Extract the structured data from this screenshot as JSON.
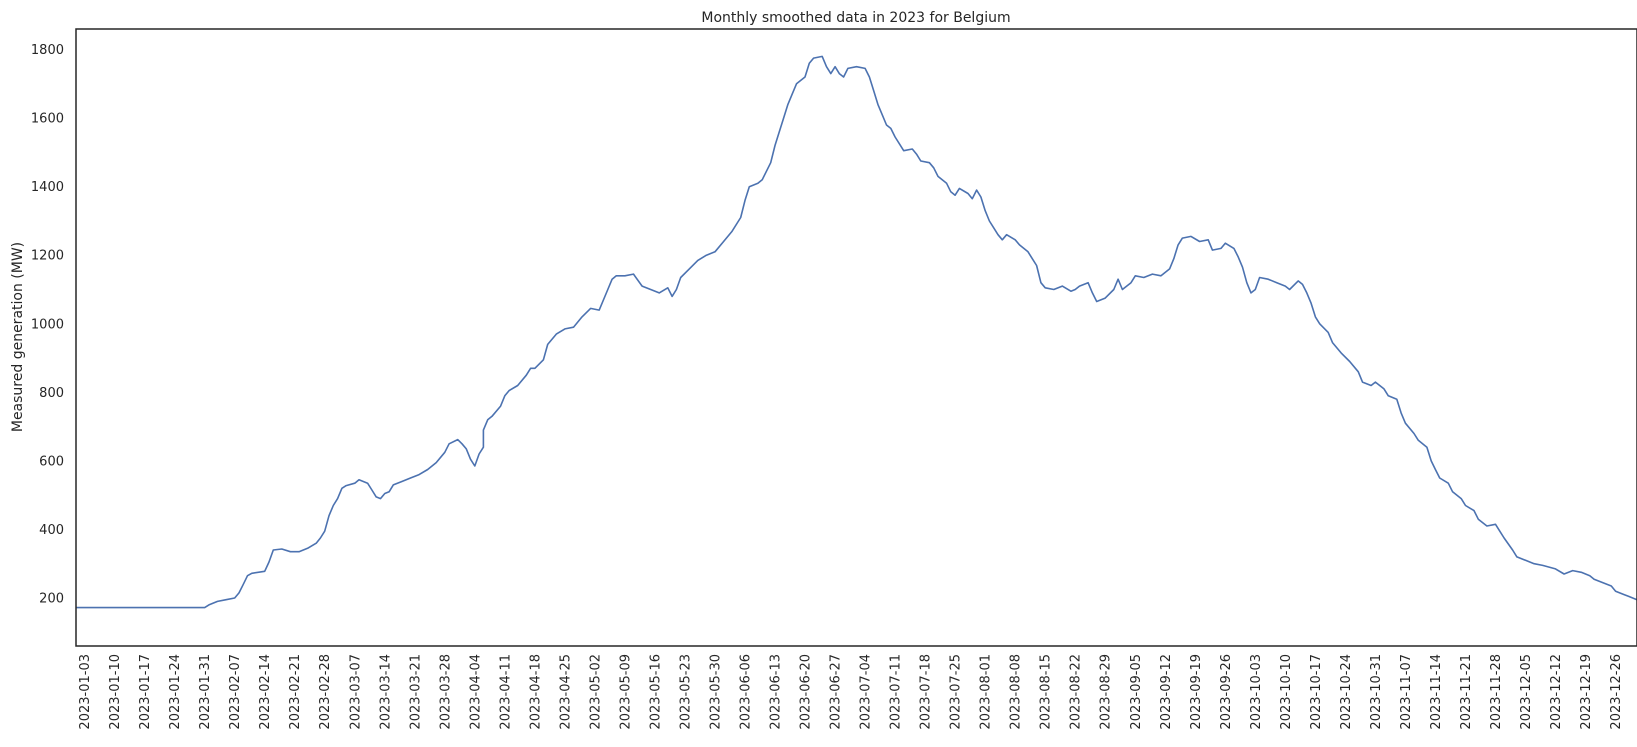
{
  "chart_data": {
    "type": "line",
    "title": "Monthly smoothed data in 2023 for Belgium",
    "xlabel": "",
    "ylabel": "Measured generation (MW)",
    "xlim": [
      "2023-01-01",
      "2023-12-31"
    ],
    "ylim": [
      60,
      1860
    ],
    "y_ticks": [
      200,
      400,
      600,
      800,
      1000,
      1200,
      1400,
      1600,
      1800
    ],
    "x_ticks": [
      "2023-01-03",
      "2023-01-10",
      "2023-01-17",
      "2023-01-24",
      "2023-01-31",
      "2023-02-07",
      "2023-02-14",
      "2023-02-21",
      "2023-02-28",
      "2023-03-07",
      "2023-03-14",
      "2023-03-21",
      "2023-03-28",
      "2023-04-04",
      "2023-04-11",
      "2023-04-18",
      "2023-04-25",
      "2023-05-02",
      "2023-05-09",
      "2023-05-16",
      "2023-05-23",
      "2023-05-30",
      "2023-06-06",
      "2023-06-13",
      "2023-06-20",
      "2023-06-27",
      "2023-07-04",
      "2023-07-11",
      "2023-07-18",
      "2023-07-25",
      "2023-08-01",
      "2023-08-08",
      "2023-08-15",
      "2023-08-22",
      "2023-08-29",
      "2023-09-05",
      "2023-09-12",
      "2023-09-19",
      "2023-09-26",
      "2023-10-03",
      "2023-10-10",
      "2023-10-17",
      "2023-10-24",
      "2023-10-31",
      "2023-11-07",
      "2023-11-14",
      "2023-11-21",
      "2023-11-28",
      "2023-12-05",
      "2023-12-12",
      "2023-12-19",
      "2023-12-26"
    ],
    "grid": false,
    "series": [
      {
        "color": "#4c72b0",
        "points": [
          [
            "2023-01-01",
            172
          ],
          [
            "2023-01-31",
            172
          ],
          [
            "2023-02-01",
            180
          ],
          [
            "2023-02-03",
            190
          ],
          [
            "2023-02-05",
            195
          ],
          [
            "2023-02-07",
            200
          ],
          [
            "2023-02-08",
            215
          ],
          [
            "2023-02-09",
            240
          ],
          [
            "2023-02-10",
            265
          ],
          [
            "2023-02-11",
            272
          ],
          [
            "2023-02-14",
            278
          ],
          [
            "2023-02-15",
            305
          ],
          [
            "2023-02-16",
            340
          ],
          [
            "2023-02-18",
            343
          ],
          [
            "2023-02-20",
            335
          ],
          [
            "2023-02-22",
            335
          ],
          [
            "2023-02-24",
            345
          ],
          [
            "2023-02-26",
            360
          ],
          [
            "2023-02-27",
            375
          ],
          [
            "2023-02-28",
            395
          ],
          [
            "2023-03-01",
            440
          ],
          [
            "2023-03-02",
            470
          ],
          [
            "2023-03-03",
            490
          ],
          [
            "2023-03-04",
            520
          ],
          [
            "2023-03-05",
            528
          ],
          [
            "2023-03-07",
            535
          ],
          [
            "2023-03-08",
            545
          ],
          [
            "2023-03-10",
            535
          ],
          [
            "2023-03-11",
            515
          ],
          [
            "2023-03-12",
            495
          ],
          [
            "2023-03-13",
            490
          ],
          [
            "2023-03-14",
            505
          ],
          [
            "2023-03-15",
            510
          ],
          [
            "2023-03-16",
            530
          ],
          [
            "2023-03-18",
            540
          ],
          [
            "2023-03-20",
            550
          ],
          [
            "2023-03-22",
            560
          ],
          [
            "2023-03-24",
            575
          ],
          [
            "2023-03-26",
            595
          ],
          [
            "2023-03-28",
            625
          ],
          [
            "2023-03-29",
            650
          ],
          [
            "2023-03-31",
            662
          ],
          [
            "2023-04-01",
            650
          ],
          [
            "2023-04-02",
            635
          ],
          [
            "2023-04-03",
            605
          ],
          [
            "2023-04-04",
            585
          ],
          [
            "2023-04-05",
            620
          ],
          [
            "2023-04-06",
            640
          ],
          [
            "2023-04-06",
            690
          ],
          [
            "2023-04-07",
            720
          ],
          [
            "2023-04-08",
            730
          ],
          [
            "2023-04-10",
            760
          ],
          [
            "2023-04-11",
            790
          ],
          [
            "2023-04-12",
            805
          ],
          [
            "2023-04-14",
            820
          ],
          [
            "2023-04-16",
            850
          ],
          [
            "2023-04-17",
            870
          ],
          [
            "2023-04-18",
            870
          ],
          [
            "2023-04-20",
            895
          ],
          [
            "2023-04-21",
            940
          ],
          [
            "2023-04-23",
            970
          ],
          [
            "2023-04-25",
            985
          ],
          [
            "2023-04-27",
            990
          ],
          [
            "2023-04-29",
            1020
          ],
          [
            "2023-05-01",
            1045
          ],
          [
            "2023-05-03",
            1040
          ],
          [
            "2023-05-05",
            1100
          ],
          [
            "2023-05-06",
            1130
          ],
          [
            "2023-05-07",
            1140
          ],
          [
            "2023-05-09",
            1140
          ],
          [
            "2023-05-11",
            1145
          ],
          [
            "2023-05-13",
            1110
          ],
          [
            "2023-05-15",
            1100
          ],
          [
            "2023-05-17",
            1090
          ],
          [
            "2023-05-19",
            1105
          ],
          [
            "2023-05-20",
            1080
          ],
          [
            "2023-05-21",
            1100
          ],
          [
            "2023-05-22",
            1135
          ],
          [
            "2023-05-24",
            1160
          ],
          [
            "2023-05-26",
            1185
          ],
          [
            "2023-05-28",
            1200
          ],
          [
            "2023-05-30",
            1210
          ],
          [
            "2023-06-01",
            1240
          ],
          [
            "2023-06-03",
            1270
          ],
          [
            "2023-06-05",
            1310
          ],
          [
            "2023-06-06",
            1360
          ],
          [
            "2023-06-07",
            1400
          ],
          [
            "2023-06-09",
            1410
          ],
          [
            "2023-06-10",
            1420
          ],
          [
            "2023-06-12",
            1470
          ],
          [
            "2023-06-13",
            1520
          ],
          [
            "2023-06-14",
            1560
          ],
          [
            "2023-06-15",
            1600
          ],
          [
            "2023-06-16",
            1640
          ],
          [
            "2023-06-17",
            1670
          ],
          [
            "2023-06-18",
            1700
          ],
          [
            "2023-06-20",
            1720
          ],
          [
            "2023-06-21",
            1760
          ],
          [
            "2023-06-22",
            1775
          ],
          [
            "2023-06-24",
            1780
          ],
          [
            "2023-06-25",
            1750
          ],
          [
            "2023-06-26",
            1730
          ],
          [
            "2023-06-27",
            1750
          ],
          [
            "2023-06-28",
            1730
          ],
          [
            "2023-06-29",
            1720
          ],
          [
            "2023-06-30",
            1745
          ],
          [
            "2023-07-02",
            1750
          ],
          [
            "2023-07-04",
            1745
          ],
          [
            "2023-07-05",
            1720
          ],
          [
            "2023-07-06",
            1680
          ],
          [
            "2023-07-07",
            1640
          ],
          [
            "2023-07-08",
            1610
          ],
          [
            "2023-07-09",
            1580
          ],
          [
            "2023-07-10",
            1570
          ],
          [
            "2023-07-11",
            1545
          ],
          [
            "2023-07-12",
            1525
          ],
          [
            "2023-07-13",
            1505
          ],
          [
            "2023-07-15",
            1510
          ],
          [
            "2023-07-16",
            1495
          ],
          [
            "2023-07-17",
            1475
          ],
          [
            "2023-07-19",
            1470
          ],
          [
            "2023-07-20",
            1455
          ],
          [
            "2023-07-21",
            1430
          ],
          [
            "2023-07-23",
            1410
          ],
          [
            "2023-07-24",
            1385
          ],
          [
            "2023-07-25",
            1375
          ],
          [
            "2023-07-26",
            1395
          ],
          [
            "2023-07-28",
            1380
          ],
          [
            "2023-07-29",
            1365
          ],
          [
            "2023-07-30",
            1390
          ],
          [
            "2023-07-31",
            1370
          ],
          [
            "2023-08-01",
            1330
          ],
          [
            "2023-08-02",
            1300
          ],
          [
            "2023-08-03",
            1280
          ],
          [
            "2023-08-04",
            1260
          ],
          [
            "2023-08-05",
            1245
          ],
          [
            "2023-08-06",
            1260
          ],
          [
            "2023-08-08",
            1245
          ],
          [
            "2023-08-09",
            1230
          ],
          [
            "2023-08-11",
            1210
          ],
          [
            "2023-08-12",
            1190
          ],
          [
            "2023-08-13",
            1170
          ],
          [
            "2023-08-14",
            1120
          ],
          [
            "2023-08-15",
            1105
          ],
          [
            "2023-08-17",
            1100
          ],
          [
            "2023-08-19",
            1110
          ],
          [
            "2023-08-21",
            1095
          ],
          [
            "2023-08-22",
            1100
          ],
          [
            "2023-08-23",
            1110
          ],
          [
            "2023-08-25",
            1120
          ],
          [
            "2023-08-26",
            1090
          ],
          [
            "2023-08-27",
            1065
          ],
          [
            "2023-08-29",
            1075
          ],
          [
            "2023-08-31",
            1100
          ],
          [
            "2023-09-01",
            1130
          ],
          [
            "2023-09-02",
            1100
          ],
          [
            "2023-09-04",
            1120
          ],
          [
            "2023-09-05",
            1140
          ],
          [
            "2023-09-07",
            1135
          ],
          [
            "2023-09-09",
            1145
          ],
          [
            "2023-09-11",
            1140
          ],
          [
            "2023-09-13",
            1160
          ],
          [
            "2023-09-14",
            1190
          ],
          [
            "2023-09-15",
            1230
          ],
          [
            "2023-09-16",
            1250
          ],
          [
            "2023-09-18",
            1255
          ],
          [
            "2023-09-20",
            1240
          ],
          [
            "2023-09-22",
            1245
          ],
          [
            "2023-09-23",
            1215
          ],
          [
            "2023-09-25",
            1220
          ],
          [
            "2023-09-26",
            1235
          ],
          [
            "2023-09-28",
            1220
          ],
          [
            "2023-09-29",
            1195
          ],
          [
            "2023-09-30",
            1165
          ],
          [
            "2023-10-01",
            1120
          ],
          [
            "2023-10-02",
            1090
          ],
          [
            "2023-10-03",
            1100
          ],
          [
            "2023-10-04",
            1135
          ],
          [
            "2023-10-06",
            1130
          ],
          [
            "2023-10-08",
            1120
          ],
          [
            "2023-10-10",
            1110
          ],
          [
            "2023-10-11",
            1100
          ],
          [
            "2023-10-13",
            1125
          ],
          [
            "2023-10-14",
            1115
          ],
          [
            "2023-10-15",
            1090
          ],
          [
            "2023-10-16",
            1060
          ],
          [
            "2023-10-17",
            1020
          ],
          [
            "2023-10-18",
            1000
          ],
          [
            "2023-10-20",
            975
          ],
          [
            "2023-10-21",
            945
          ],
          [
            "2023-10-23",
            915
          ],
          [
            "2023-10-25",
            890
          ],
          [
            "2023-10-27",
            860
          ],
          [
            "2023-10-28",
            830
          ],
          [
            "2023-10-30",
            820
          ],
          [
            "2023-10-31",
            830
          ],
          [
            "2023-11-02",
            810
          ],
          [
            "2023-11-03",
            790
          ],
          [
            "2023-11-05",
            780
          ],
          [
            "2023-11-06",
            740
          ],
          [
            "2023-11-07",
            710
          ],
          [
            "2023-11-09",
            680
          ],
          [
            "2023-11-10",
            660
          ],
          [
            "2023-11-12",
            640
          ],
          [
            "2023-11-13",
            600
          ],
          [
            "2023-11-14",
            575
          ],
          [
            "2023-11-15",
            550
          ],
          [
            "2023-11-17",
            535
          ],
          [
            "2023-11-18",
            510
          ],
          [
            "2023-11-20",
            490
          ],
          [
            "2023-11-21",
            470
          ],
          [
            "2023-11-23",
            455
          ],
          [
            "2023-11-24",
            430
          ],
          [
            "2023-11-26",
            410
          ],
          [
            "2023-11-28",
            415
          ],
          [
            "2023-11-29",
            395
          ],
          [
            "2023-11-30",
            375
          ],
          [
            "2023-12-02",
            340
          ],
          [
            "2023-12-03",
            320
          ],
          [
            "2023-12-05",
            310
          ],
          [
            "2023-12-07",
            300
          ],
          [
            "2023-12-09",
            295
          ],
          [
            "2023-12-12",
            285
          ],
          [
            "2023-12-14",
            270
          ],
          [
            "2023-12-16",
            280
          ],
          [
            "2023-12-18",
            275
          ],
          [
            "2023-12-20",
            265
          ],
          [
            "2023-12-21",
            255
          ],
          [
            "2023-12-23",
            245
          ],
          [
            "2023-12-25",
            235
          ],
          [
            "2023-12-26",
            220
          ],
          [
            "2023-12-28",
            210
          ],
          [
            "2023-12-29",
            205
          ],
          [
            "2023-12-31",
            195
          ]
        ]
      }
    ]
  }
}
